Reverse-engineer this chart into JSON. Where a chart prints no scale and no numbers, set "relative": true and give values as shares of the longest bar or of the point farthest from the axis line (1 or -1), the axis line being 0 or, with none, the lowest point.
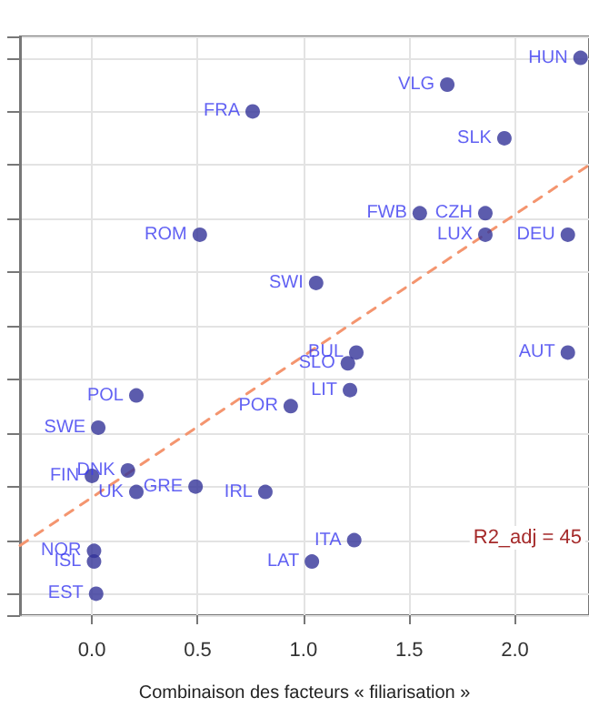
{
  "chart_data": {
    "type": "scatter",
    "xlabel": "Combinaison des facteurs « filiarisation »",
    "relative": true,
    "xlim": [
      -0.34,
      2.35
    ],
    "xticks": [
      {
        "value": 0,
        "label": "0.0"
      },
      {
        "value": 0.5,
        "label": "0.5"
      },
      {
        "value": 1,
        "label": "1.0"
      },
      {
        "value": 1.5,
        "label": "1.5"
      },
      {
        "value": 2,
        "label": "2.0"
      }
    ],
    "tick_labels": "x",
    "grid": true,
    "series": [
      {
        "color": "#333399",
        "marker": "circle",
        "x": [
          2.31,
          1.68,
          0.76,
          1.95,
          1.55,
          1.86,
          1.86,
          2.25,
          0.51,
          1.06,
          1.25,
          2.25,
          1.21,
          1.22,
          0.21,
          0.94,
          0.03,
          0.17,
          0.0,
          0.49,
          0.21,
          0.82,
          1.24,
          0.01,
          0.01,
          1.04,
          0.02
        ],
        "values": [
          1.0,
          0.95,
          0.9,
          0.85,
          0.71,
          0.71,
          0.67,
          0.67,
          0.67,
          0.58,
          0.45,
          0.45,
          0.43,
          0.38,
          0.37,
          0.35,
          0.31,
          0.23,
          0.22,
          0.2,
          0.19,
          0.19,
          0.1,
          0.08,
          0.06,
          0.06,
          0.0
        ]
      },
      {
        "type": "line",
        "color": "#f4956f",
        "line_style": "dashed",
        "x": [
          -0.34,
          2.35
        ],
        "values": [
          0.09,
          0.8
        ]
      }
    ],
    "annotations": [
      {
        "text": "HUN",
        "x": 2.31,
        "y": 1.0
      },
      {
        "text": "VLG",
        "x": 1.68,
        "y": 0.95
      },
      {
        "text": "FRA",
        "x": 0.76,
        "y": 0.9
      },
      {
        "text": "SLK",
        "x": 1.95,
        "y": 0.85
      },
      {
        "text": "FWB",
        "x": 1.55,
        "y": 0.71
      },
      {
        "text": "CZH",
        "x": 1.86,
        "y": 0.71
      },
      {
        "text": "LUX",
        "x": 1.86,
        "y": 0.67
      },
      {
        "text": "DEU",
        "x": 2.25,
        "y": 0.67
      },
      {
        "text": "ROM",
        "x": 0.51,
        "y": 0.67
      },
      {
        "text": "SWI",
        "x": 1.06,
        "y": 0.58
      },
      {
        "text": "BUL",
        "x": 1.25,
        "y": 0.45
      },
      {
        "text": "AUT",
        "x": 2.25,
        "y": 0.45
      },
      {
        "text": "SLO",
        "x": 1.21,
        "y": 0.43
      },
      {
        "text": "LIT",
        "x": 1.22,
        "y": 0.38
      },
      {
        "text": "POL",
        "x": 0.21,
        "y": 0.37
      },
      {
        "text": "POR",
        "x": 0.94,
        "y": 0.35
      },
      {
        "text": "SWE",
        "x": 0.03,
        "y": 0.31
      },
      {
        "text": "DNK",
        "x": 0.17,
        "y": 0.23
      },
      {
        "text": "FIN",
        "x": 0.0,
        "y": 0.22
      },
      {
        "text": "GRE",
        "x": 0.49,
        "y": 0.2
      },
      {
        "text": "UK",
        "x": 0.21,
        "y": 0.19
      },
      {
        "text": "IRL",
        "x": 0.82,
        "y": 0.19
      },
      {
        "text": "ITA",
        "x": 1.24,
        "y": 0.1
      },
      {
        "text": "NOR",
        "x": 0.01,
        "y": 0.08
      },
      {
        "text": "ISL",
        "x": 0.01,
        "y": 0.06
      },
      {
        "text": "LAT",
        "x": 1.04,
        "y": 0.06
      },
      {
        "text": "EST",
        "x": 0.02,
        "y": 0.0
      },
      "R2_adj = 45"
    ]
  }
}
